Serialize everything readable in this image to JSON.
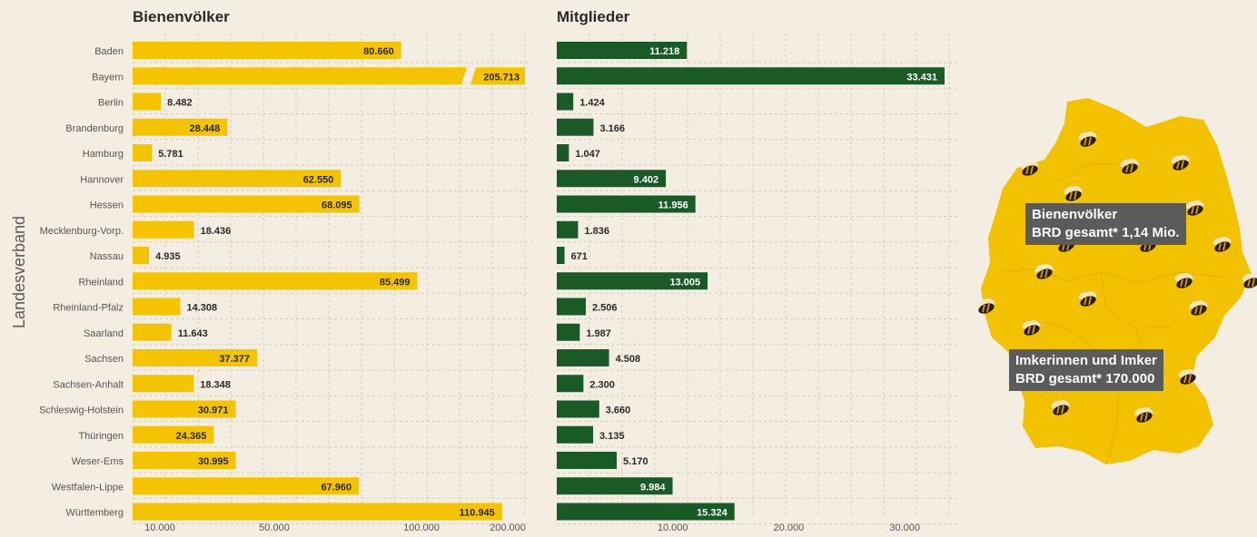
{
  "y_axis_label": "Landesverband",
  "map": {
    "box1": {
      "line1": "Bienenvölker",
      "line2": "BRD gesamt* 1,14 Mio."
    },
    "box2": {
      "line1": "Imkerinnen und Imker",
      "line2": "BRD gesamt* 170.000"
    }
  },
  "colors": {
    "bees_bar": "#f5c400",
    "members_bar": "#1a5a26",
    "background": "#f4ede2",
    "map": "#f2c200"
  },
  "chart_data": [
    {
      "type": "bar",
      "orientation": "horizontal",
      "title": "Bienenvölker",
      "ylabel": "Landesverband",
      "axis_break": true,
      "xlim": [
        0,
        120000
      ],
      "xticks": [
        10000,
        50000,
        100000,
        200000
      ],
      "xtick_labels": [
        "10.000",
        "50.000",
        "100.000",
        "200.000"
      ],
      "grid": true,
      "categories": [
        "Baden",
        "Bayern",
        "Berlin",
        "Brandenburg",
        "Hamburg",
        "Hannover",
        "Hessen",
        "Mecklenburg-Vorp.",
        "Nassau",
        "Rheinland",
        "Rheinland-Pfalz",
        "Saarland",
        "Sachsen",
        "Sachsen-Anhalt",
        "Schleswig-Holstein",
        "Thüringen",
        "Weser-Ems",
        "Westfalen-Lippe",
        "Württemberg"
      ],
      "values": [
        80660,
        205713,
        8482,
        28448,
        5781,
        62550,
        68095,
        18436,
        4935,
        85499,
        14308,
        11643,
        37377,
        18348,
        30971,
        24365,
        30995,
        67960,
        110945
      ],
      "value_labels": [
        "80.660",
        "205.713",
        "8.482",
        "28.448",
        "5.781",
        "62.550",
        "68.095",
        "18.436",
        "4.935",
        "85.499",
        "14.308",
        "11.643",
        "37.377",
        "18.348",
        "30.971",
        "24.365",
        "30.995",
        "67.960",
        "110.945"
      ]
    },
    {
      "type": "bar",
      "orientation": "horizontal",
      "title": "Mitglieder",
      "xlim": [
        0,
        35000
      ],
      "xticks": [
        10000,
        20000,
        30000
      ],
      "xtick_labels": [
        "10.000",
        "20.000",
        "30.000"
      ],
      "grid": true,
      "categories": [
        "Baden",
        "Bayern",
        "Berlin",
        "Brandenburg",
        "Hamburg",
        "Hannover",
        "Hessen",
        "Mecklenburg-Vorp.",
        "Nassau",
        "Rheinland",
        "Rheinland-Pfalz",
        "Saarland",
        "Sachsen",
        "Sachsen-Anhalt",
        "Schleswig-Holstein",
        "Thüringen",
        "Weser-Ems",
        "Westfalen-Lippe",
        "Württemberg"
      ],
      "values": [
        11218,
        33431,
        1424,
        3166,
        1047,
        9402,
        11956,
        1836,
        671,
        13005,
        2506,
        1987,
        4508,
        2300,
        3660,
        3135,
        5170,
        9984,
        15324
      ],
      "value_labels": [
        "11.218",
        "33.431",
        "1.424",
        "3.166",
        "1.047",
        "9.402",
        "11.956",
        "1.836",
        "671",
        "13.005",
        "2.506",
        "1.987",
        "4.508",
        "2.300",
        "3.660",
        "3.135",
        "5.170",
        "9.984",
        "15.324"
      ]
    }
  ]
}
